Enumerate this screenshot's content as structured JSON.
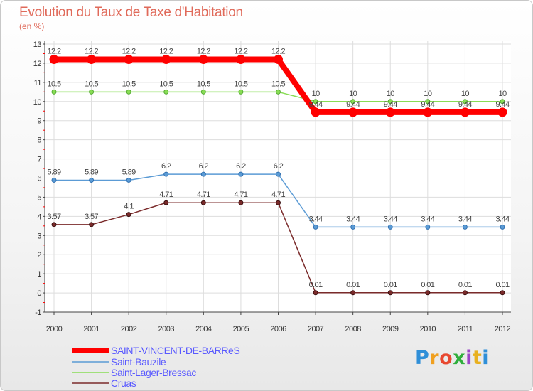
{
  "chart_data": {
    "type": "line",
    "title": "Evolution du Taux de Taxe d'Habitation",
    "unit": "(en %)",
    "x": [
      "2000",
      "2001",
      "2002",
      "2003",
      "2004",
      "2005",
      "2006",
      "2007",
      "2008",
      "2009",
      "2010",
      "2011",
      "2012"
    ],
    "ylim": [
      -1,
      13
    ],
    "yticks": [
      -1,
      0,
      1,
      2,
      3,
      4,
      5,
      6,
      7,
      8,
      9,
      10,
      11,
      12,
      13
    ],
    "series": [
      {
        "name": "SAINT-VINCENT-DE-BARReS",
        "color": "#ff0000",
        "width": 8,
        "values": [
          12.2,
          12.2,
          12.2,
          12.2,
          12.2,
          12.2,
          12.2,
          9.44,
          9.44,
          9.44,
          9.44,
          9.44,
          9.44
        ],
        "labels": [
          "12.2",
          "12.2",
          "12.2",
          "12.2",
          "12.2",
          "12.2",
          "12.2",
          "9.44",
          "9.44",
          "9.44",
          "9.44",
          "9.44",
          "9.44"
        ]
      },
      {
        "name": "Saint-Bauzile",
        "color": "#5b9bd5",
        "width": 1.5,
        "values": [
          5.89,
          5.89,
          5.89,
          6.2,
          6.2,
          6.2,
          6.2,
          3.44,
          3.44,
          3.44,
          3.44,
          3.44,
          3.44
        ],
        "labels": [
          "5.89",
          "5.89",
          "5.89",
          "6.2",
          "6.2",
          "6.2",
          "6.2",
          "3.44",
          "3.44",
          "3.44",
          "3.44",
          "3.44",
          "3.44"
        ]
      },
      {
        "name": "Saint-Lager-Bressac",
        "color": "#88dd55",
        "width": 1.5,
        "values": [
          10.5,
          10.5,
          10.5,
          10.5,
          10.5,
          10.5,
          10.5,
          10,
          10,
          10,
          10,
          10,
          10
        ],
        "labels": [
          "10.5",
          "10.5",
          "10.5",
          "10.5",
          "10.5",
          "10.5",
          "10.5",
          "10",
          "10",
          "10",
          "10",
          "10",
          "10"
        ]
      },
      {
        "name": "Cruas",
        "color": "#7a2a2a",
        "width": 1.5,
        "values": [
          3.57,
          3.57,
          4.1,
          4.71,
          4.71,
          4.71,
          4.71,
          0.01,
          0.01,
          0.01,
          0.01,
          0.01,
          0.01
        ],
        "labels": [
          "3.57",
          "3.57",
          "4.1",
          "4.71",
          "4.71",
          "4.71",
          "4.71",
          "0.01",
          "0.01",
          "0.01",
          "0.01",
          "0.01",
          "0.01"
        ]
      }
    ]
  },
  "branding": {
    "logo_letters": [
      "P",
      "r",
      "o",
      "x",
      "i",
      "t",
      "i"
    ]
  }
}
